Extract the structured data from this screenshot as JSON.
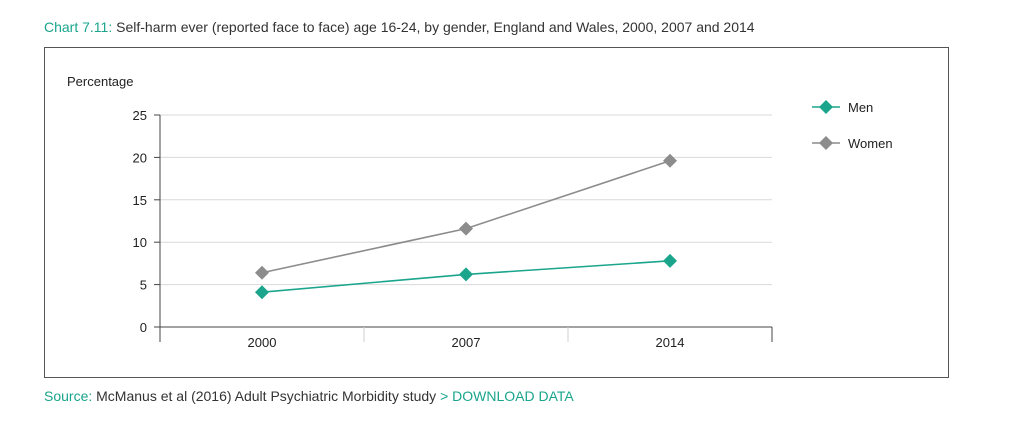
{
  "header": {
    "chart_prefix": "Chart 7.11:",
    "chart_title": " Self-harm ever (reported face to face) age 16-24, by gender, England and Wales, 2000, 2007 and 2014"
  },
  "footer": {
    "source_label": "Source:",
    "source_text": " McManus et al (2016) Adult Psychiatric Morbidity study ",
    "download_link": "> DOWNLOAD DATA"
  },
  "colors": {
    "accent": "#1aa58c",
    "men": "#1aa58c",
    "women": "#8c8c8c",
    "grid": "#d9d9d9"
  },
  "chart_data": {
    "type": "line",
    "ylabel": "Percentage",
    "xlabel": "",
    "categories": [
      "2000",
      "2007",
      "2014"
    ],
    "ylim": [
      0,
      25
    ],
    "yticks": [
      0,
      5,
      10,
      15,
      20,
      25
    ],
    "grid": true,
    "legend_position": "top-right",
    "series": [
      {
        "name": "Men",
        "values": [
          4.1,
          6.2,
          7.8
        ],
        "color": "#1aa58c"
      },
      {
        "name": "Women",
        "values": [
          6.4,
          11.6,
          19.6
        ],
        "color": "#8c8c8c"
      }
    ]
  }
}
